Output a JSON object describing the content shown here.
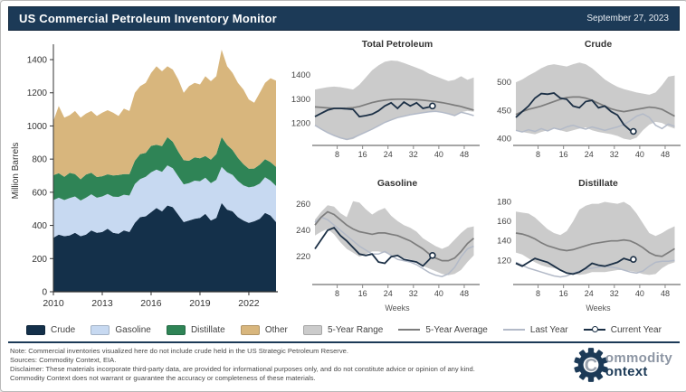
{
  "header": {
    "title": "US Commercial Petroleum Inventory Monitor",
    "date": "September 27, 2023"
  },
  "colors": {
    "crude": "#14304a",
    "gasoline": "#c7d9f1",
    "distillate": "#2f8456",
    "other": "#d8b67d",
    "range": "#cbcbcb",
    "avg": "#7d7d7d",
    "lastYear": "#b3bac8",
    "currentYear": "#1c3046",
    "header_bg": "#1c3a57",
    "axis": "#444444"
  },
  "chart_data": [
    {
      "type": "area",
      "stacked": true,
      "title": "",
      "ylabel": "Million Barrels",
      "xlabel": "",
      "xlim": [
        2010,
        2023.67
      ],
      "ylim": [
        0,
        1460
      ],
      "xticks": [
        2010,
        2013,
        2016,
        2019,
        2022
      ],
      "yticks": [
        0,
        200,
        400,
        600,
        800,
        1000,
        1200,
        1400
      ],
      "x": [
        2010,
        2010.33,
        2010.67,
        2011,
        2011.33,
        2011.67,
        2012,
        2012.33,
        2012.67,
        2013,
        2013.33,
        2013.67,
        2014,
        2014.33,
        2014.67,
        2015,
        2015.33,
        2015.67,
        2016,
        2016.33,
        2016.67,
        2017,
        2017.33,
        2017.67,
        2018,
        2018.33,
        2018.67,
        2019,
        2019.33,
        2019.67,
        2020,
        2020.33,
        2020.67,
        2021,
        2021.33,
        2021.67,
        2022,
        2022.33,
        2022.67,
        2023,
        2023.33,
        2023.67
      ],
      "series": [
        {
          "name": "Crude",
          "color": "crude",
          "values": [
            325,
            345,
            335,
            340,
            355,
            335,
            345,
            370,
            355,
            360,
            380,
            355,
            350,
            370,
            360,
            415,
            450,
            455,
            480,
            505,
            485,
            520,
            510,
            465,
            420,
            430,
            440,
            445,
            470,
            430,
            445,
            535,
            495,
            485,
            450,
            430,
            415,
            425,
            440,
            475,
            460,
            420
          ]
        },
        {
          "name": "Gasoline",
          "color": "gasoline",
          "values": [
            228,
            222,
            218,
            225,
            220,
            215,
            222,
            218,
            212,
            215,
            210,
            218,
            222,
            215,
            220,
            235,
            230,
            238,
            240,
            232,
            238,
            242,
            235,
            230,
            228,
            225,
            230,
            222,
            218,
            225,
            230,
            218,
            225,
            220,
            218,
            212,
            215,
            210,
            212,
            215,
            210,
            218
          ]
        },
        {
          "name": "Distillate",
          "color": "distillate",
          "values": [
            150,
            148,
            140,
            152,
            135,
            128,
            140,
            130,
            125,
            122,
            118,
            128,
            132,
            125,
            130,
            140,
            150,
            145,
            160,
            150,
            155,
            170,
            160,
            150,
            145,
            135,
            140,
            138,
            130,
            142,
            155,
            180,
            165,
            150,
            140,
            128,
            112,
            108,
            115,
            110,
            112,
            115
          ]
        },
        {
          "name": "Other",
          "color": "other",
          "values": [
            327,
            405,
            357,
            348,
            380,
            372,
            368,
            372,
            368,
            383,
            387,
            379,
            356,
            395,
            380,
            410,
            410,
            422,
            440,
            473,
            452,
            428,
            435,
            435,
            407,
            450,
            450,
            445,
            482,
            473,
            470,
            527,
            475,
            465,
            452,
            450,
            418,
            397,
            433,
            460,
            506,
            520
          ]
        }
      ]
    },
    {
      "type": "line",
      "title": "Total Petroleum",
      "xlabel": "",
      "xlim": [
        1,
        52
      ],
      "ylim": [
        1120,
        1475
      ],
      "xticks": [
        8,
        16,
        24,
        32,
        40,
        48
      ],
      "yticks": [
        1200,
        1300,
        1400
      ],
      "x": [
        1,
        3,
        5,
        7,
        9,
        11,
        13,
        15,
        17,
        19,
        21,
        23,
        25,
        27,
        29,
        31,
        33,
        35,
        37,
        39,
        41,
        43,
        45,
        47,
        49,
        51
      ],
      "band": {
        "low": [
          1190,
          1175,
          1160,
          1148,
          1138,
          1130,
          1135,
          1150,
          1165,
          1175,
          1190,
          1205,
          1215,
          1225,
          1232,
          1238,
          1242,
          1246,
          1250,
          1252,
          1248,
          1242,
          1232,
          1246,
          1252,
          1248
        ],
        "high": [
          1340,
          1345,
          1350,
          1352,
          1350,
          1345,
          1340,
          1360,
          1390,
          1420,
          1440,
          1455,
          1460,
          1458,
          1450,
          1440,
          1430,
          1420,
          1405,
          1395,
          1385,
          1375,
          1380,
          1395,
          1380,
          1390
        ]
      },
      "avg": [
        1268,
        1266,
        1264,
        1262,
        1262,
        1263,
        1265,
        1270,
        1278,
        1286,
        1292,
        1296,
        1299,
        1300,
        1300,
        1299,
        1298,
        1296,
        1293,
        1290,
        1286,
        1281,
        1275,
        1270,
        1262,
        1255
      ],
      "last_year": [
        1192,
        1176,
        1162,
        1150,
        1140,
        1134,
        1140,
        1152,
        1164,
        1176,
        1190,
        1204,
        1214,
        1224,
        1230,
        1236,
        1240,
        1244,
        1248,
        1250,
        1246,
        1240,
        1232,
        1246,
        1240,
        1232
      ],
      "current_x": [
        1,
        3,
        5,
        7,
        9,
        11,
        13,
        15,
        17,
        19,
        21,
        23,
        25,
        27,
        29,
        31,
        33,
        35,
        37,
        38
      ],
      "current_year": [
        1228,
        1242,
        1255,
        1262,
        1262,
        1260,
        1258,
        1228,
        1232,
        1238,
        1252,
        1272,
        1285,
        1262,
        1288,
        1272,
        1285,
        1262,
        1268,
        1272
      ]
    },
    {
      "type": "line",
      "title": "Crude",
      "xlabel": "",
      "xlim": [
        1,
        52
      ],
      "ylim": [
        393,
        545
      ],
      "xticks": [
        8,
        16,
        24,
        32,
        40,
        48
      ],
      "yticks": [
        400,
        450,
        500
      ],
      "x": [
        1,
        3,
        5,
        7,
        9,
        11,
        13,
        15,
        17,
        19,
        21,
        23,
        25,
        27,
        29,
        31,
        33,
        35,
        37,
        39,
        41,
        43,
        45,
        47,
        49,
        51
      ],
      "band": {
        "low": [
          415,
          412,
          410,
          408,
          412,
          415,
          418,
          415,
          412,
          415,
          418,
          420,
          415,
          412,
          410,
          408,
          405,
          400,
          398,
          402,
          415,
          425,
          430,
          428,
          422,
          418
        ],
        "high": [
          500,
          505,
          512,
          518,
          525,
          530,
          532,
          530,
          528,
          532,
          535,
          532,
          525,
          515,
          505,
          498,
          492,
          488,
          485,
          482,
          480,
          478,
          482,
          495,
          510,
          512
        ]
      },
      "avg": [
        443,
        448,
        452,
        455,
        458,
        462,
        466,
        470,
        473,
        474,
        474,
        472,
        468,
        463,
        458,
        453,
        450,
        448,
        450,
        452,
        454,
        456,
        455,
        452,
        446,
        440
      ],
      "last_year": [
        415,
        412,
        416,
        413,
        418,
        414,
        419,
        416,
        421,
        424,
        420,
        417,
        421,
        418,
        415,
        418,
        421,
        425,
        432,
        440,
        444,
        438,
        424,
        418,
        426,
        422
      ],
      "current_x": [
        1,
        3,
        5,
        7,
        9,
        11,
        13,
        15,
        17,
        19,
        21,
        23,
        25,
        27,
        29,
        31,
        33,
        35,
        37,
        38
      ],
      "current_year": [
        438,
        448,
        458,
        472,
        480,
        479,
        481,
        472,
        470,
        458,
        455,
        466,
        468,
        455,
        458,
        448,
        442,
        425,
        415,
        413
      ]
    },
    {
      "type": "line",
      "title": "Gasoline",
      "xlabel": "Weeks",
      "xlim": [
        1,
        52
      ],
      "ylim": [
        201,
        266
      ],
      "xticks": [
        8,
        16,
        24,
        32,
        40,
        48
      ],
      "yticks": [
        220,
        240,
        260
      ],
      "x": [
        1,
        3,
        5,
        7,
        9,
        11,
        13,
        15,
        17,
        19,
        21,
        23,
        25,
        27,
        29,
        31,
        33,
        35,
        37,
        39,
        41,
        43,
        45,
        47,
        49,
        51
      ],
      "band": {
        "low": [
          236,
          239,
          241,
          237,
          231,
          226,
          223,
          220,
          222,
          224,
          224,
          223,
          221,
          220,
          219,
          218,
          216,
          213,
          211,
          209,
          207,
          206,
          207,
          210,
          216,
          221
        ],
        "high": [
          248,
          254,
          259,
          258,
          253,
          250,
          262,
          261,
          256,
          252,
          255,
          257,
          251,
          247,
          244,
          242,
          239,
          234,
          231,
          228,
          226,
          228,
          233,
          238,
          242,
          243
        ]
      },
      "avg": [
        244,
        250,
        254,
        252,
        248,
        244,
        241,
        239,
        238,
        237,
        238,
        238,
        237,
        236,
        234,
        232,
        229,
        226,
        222,
        219,
        217,
        217,
        219,
        224,
        230,
        234
      ],
      "last_year": [
        246,
        250,
        248,
        244,
        240,
        236,
        232,
        228,
        225,
        222,
        222,
        224,
        221,
        218,
        217,
        216,
        214,
        211,
        208,
        206,
        205,
        207,
        212,
        220,
        226,
        228
      ],
      "current_x": [
        1,
        3,
        5,
        7,
        9,
        11,
        13,
        15,
        17,
        19,
        21,
        23,
        25,
        27,
        29,
        31,
        33,
        35,
        37,
        38
      ],
      "current_year": [
        226,
        233,
        240,
        242,
        236,
        232,
        227,
        222,
        221,
        222,
        216,
        215,
        220,
        221,
        218,
        217,
        216,
        213,
        218,
        221
      ]
    },
    {
      "type": "line",
      "title": "Distillate",
      "xlabel": "Weeks",
      "xlim": [
        1,
        52
      ],
      "ylim": [
        98,
        186
      ],
      "xticks": [
        8,
        16,
        24,
        32,
        40,
        48
      ],
      "yticks": [
        120,
        140,
        160,
        180
      ],
      "x": [
        1,
        3,
        5,
        7,
        9,
        11,
        13,
        15,
        17,
        19,
        21,
        23,
        25,
        27,
        29,
        31,
        33,
        35,
        37,
        39,
        41,
        43,
        45,
        47,
        49,
        51
      ],
      "band": {
        "low": [
          128,
          126,
          122,
          118,
          115,
          113,
          112,
          110,
          108,
          106,
          105,
          106,
          108,
          108,
          108,
          109,
          110,
          110,
          109,
          108,
          106,
          105,
          106,
          112,
          116,
          118
        ],
        "high": [
          170,
          169,
          168,
          164,
          158,
          152,
          148,
          146,
          150,
          160,
          172,
          176,
          178,
          178,
          180,
          179,
          178,
          180,
          176,
          168,
          158,
          148,
          145,
          148,
          152,
          155
        ]
      },
      "avg": [
        148,
        147,
        145,
        142,
        138,
        135,
        133,
        131,
        130,
        131,
        133,
        135,
        137,
        138,
        139,
        140,
        140,
        141,
        140,
        137,
        133,
        128,
        125,
        124,
        128,
        132
      ],
      "last_year": [
        118,
        115,
        112,
        110,
        108,
        106,
        104,
        103,
        104,
        107,
        109,
        111,
        112,
        113,
        114,
        113,
        112,
        110,
        108,
        107,
        109,
        114,
        118,
        119,
        119,
        120
      ],
      "current_x": [
        1,
        3,
        5,
        7,
        9,
        11,
        13,
        15,
        17,
        19,
        21,
        23,
        25,
        27,
        29,
        31,
        33,
        35,
        37,
        38
      ],
      "current_year": [
        117,
        114,
        118,
        122,
        120,
        118,
        114,
        110,
        107,
        106,
        108,
        112,
        117,
        115,
        114,
        116,
        118,
        122,
        120,
        121
      ]
    }
  ],
  "legend": {
    "items": [
      {
        "label": "Crude",
        "kind": "fill",
        "color": "crude"
      },
      {
        "label": "Gasoline",
        "kind": "fill",
        "color": "gasoline"
      },
      {
        "label": "Distillate",
        "kind": "fill",
        "color": "distillate"
      },
      {
        "label": "Other",
        "kind": "fill",
        "color": "other"
      },
      {
        "label": "5-Year Range",
        "kind": "fill",
        "color": "range"
      },
      {
        "label": "5-Year Average",
        "kind": "line",
        "color": "avg"
      },
      {
        "label": "Last Year",
        "kind": "line",
        "color": "lastYear"
      },
      {
        "label": "Current Year",
        "kind": "line-marker",
        "color": "currentYear"
      }
    ]
  },
  "notes": {
    "note": "Note: Commercial inventories visualized here do not include crude held in the US Strategic Petroleum Reserve.",
    "sources": "Sources: Commodity Context, EIA.",
    "disclaimer": "Disclaimer: These materials incorporate third-party data, are provided for informational purposes only, and do not constitute advice or opinion of any kind. Commodity Context does not warrant or guarantee the accuracy or completeness of these materials."
  },
  "logo": {
    "letter": "C",
    "line1": "ommodity",
    "line2": "ontext"
  }
}
